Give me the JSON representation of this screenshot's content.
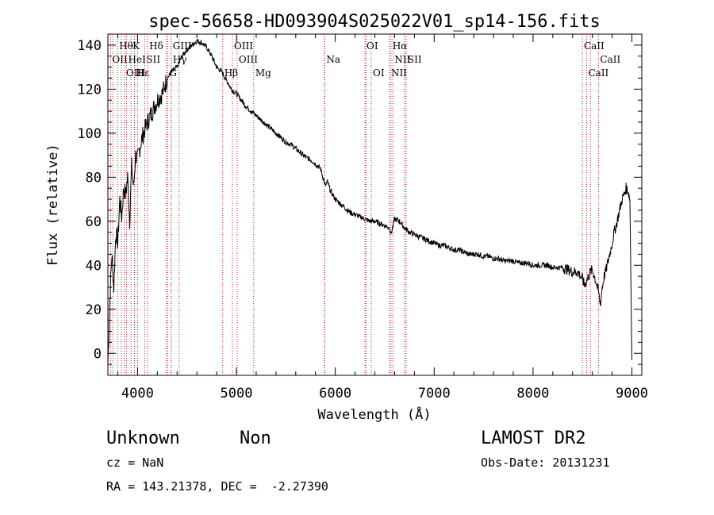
{
  "chart_data": {
    "type": "line",
    "title": "spec-56658-HD093904S025022V01_sp14-156.fits",
    "xlabel": "Wavelength (Å)",
    "ylabel": "Flux (relative)",
    "xlim": [
      3700,
      9100
    ],
    "ylim": [
      -10,
      145
    ],
    "xticks": [
      4000,
      5000,
      6000,
      7000,
      8000,
      9000
    ],
    "yticks": [
      0,
      20,
      40,
      60,
      80,
      100,
      120,
      140
    ],
    "grid": false,
    "series": [
      {
        "color": "#000000",
        "x": [
          3700,
          3720,
          3740,
          3760,
          3780,
          3800,
          3820,
          3840,
          3860,
          3880,
          3900,
          3920,
          3940,
          3960,
          3980,
          4000,
          4030,
          4060,
          4100,
          4150,
          4200,
          4250,
          4300,
          4350,
          4400,
          4450,
          4500,
          4550,
          4600,
          4650,
          4700,
          4750,
          4800,
          4850,
          4900,
          4950,
          5000,
          5050,
          5100,
          5150,
          5200,
          5250,
          5300,
          5350,
          5400,
          5450,
          5500,
          5550,
          5600,
          5650,
          5700,
          5750,
          5800,
          5850,
          5900,
          5920,
          5950,
          6000,
          6050,
          6100,
          6150,
          6200,
          6250,
          6300,
          6350,
          6400,
          6450,
          6500,
          6550,
          6563,
          6600,
          6650,
          6700,
          6750,
          6800,
          6850,
          6900,
          6950,
          7000,
          7050,
          7100,
          7150,
          7200,
          7250,
          7300,
          7350,
          7400,
          7450,
          7500,
          7550,
          7600,
          7650,
          7700,
          7750,
          7800,
          7850,
          7900,
          7950,
          8000,
          8050,
          8100,
          8150,
          8200,
          8250,
          8300,
          8350,
          8400,
          8450,
          8498,
          8520,
          8542,
          8560,
          8580,
          8600,
          8620,
          8640,
          8662,
          8680,
          8700,
          8720,
          8740,
          8760,
          8780,
          8800,
          8820,
          8840,
          8860,
          8880,
          8900,
          8920,
          8940,
          8960,
          8980,
          9000
        ],
        "y": [
          -5,
          25,
          45,
          30,
          55,
          50,
          70,
          62,
          75,
          72,
          80,
          60,
          85,
          75,
          90,
          88,
          95,
          100,
          105,
          110,
          115,
          118,
          125,
          128,
          130,
          135,
          138,
          140,
          142,
          141,
          139,
          135,
          130,
          128,
          124,
          120,
          118,
          115,
          112,
          110,
          108,
          106,
          104,
          102,
          100,
          98,
          96,
          95,
          93,
          91,
          89,
          88,
          86,
          84,
          76,
          78,
          74,
          70,
          68,
          66,
          64,
          63,
          62,
          61,
          60,
          60,
          59,
          58,
          57,
          54,
          61,
          60,
          57,
          55,
          54,
          53,
          52,
          51,
          50,
          49,
          49,
          48,
          47,
          47,
          46,
          45,
          45,
          45,
          44,
          44,
          43,
          43,
          42,
          42,
          42,
          41,
          41,
          41,
          40,
          40,
          40,
          40,
          39,
          39,
          39,
          38,
          37,
          37,
          34,
          31,
          33,
          35,
          37,
          38,
          35,
          32,
          28,
          22,
          30,
          35,
          38,
          42,
          46,
          50,
          55,
          58,
          62,
          66,
          70,
          72,
          75,
          74,
          70,
          -3
        ]
      }
    ],
    "lines_top": [
      {
        "label": "Hθ",
        "x": 3798
      },
      {
        "label": "K",
        "x": 3934
      },
      {
        "label": "Hδ",
        "x": 4102
      },
      {
        "label": "GIII",
        "x": 4340
      },
      {
        "label": "OIII",
        "x": 4959
      },
      {
        "label": "OI",
        "x": 6300
      },
      {
        "label": "Hα",
        "x": 6563
      },
      {
        "label": "CaII",
        "x": 8498
      }
    ],
    "lines_mid": [
      {
        "label": "OII",
        "x": 3727
      },
      {
        "label": "HeI",
        "x": 3889
      },
      {
        "label": "SII",
        "x": 4072
      },
      {
        "label": "Hγ",
        "x": 4340
      },
      {
        "label": "OIII",
        "x": 5007
      },
      {
        "label": "Na",
        "x": 5893
      },
      {
        "label": "NII",
        "x": 6583
      },
      {
        "label": "SII",
        "x": 6716
      },
      {
        "label": "CaII",
        "x": 8662
      }
    ],
    "lines_low": [
      {
        "label": "OIII",
        "x": 3869
      },
      {
        "label": "Hε",
        "x": 3970
      },
      {
        "label": "H",
        "x": 3968
      },
      {
        "label": "G",
        "x": 4305
      },
      {
        "label": "Hβ",
        "x": 4861
      },
      {
        "label": "Mg",
        "x": 5175
      },
      {
        "label": "OI",
        "x": 6364
      },
      {
        "label": "NII",
        "x": 6548
      },
      {
        "label": "CaII",
        "x": 8542
      }
    ],
    "extra_line_positions": [
      3750,
      3835,
      4000,
      4290,
      4420,
      5890,
      6310,
      6700,
      8580
    ]
  },
  "info": {
    "object_class": "Unknown",
    "object_subclass": "Non",
    "survey": "LAMOST DR2",
    "cz": "cz = NaN",
    "obs_date": "Obs-Date: 20131231",
    "coords": "RA = 143.21378, DEC =  -2.27390"
  }
}
